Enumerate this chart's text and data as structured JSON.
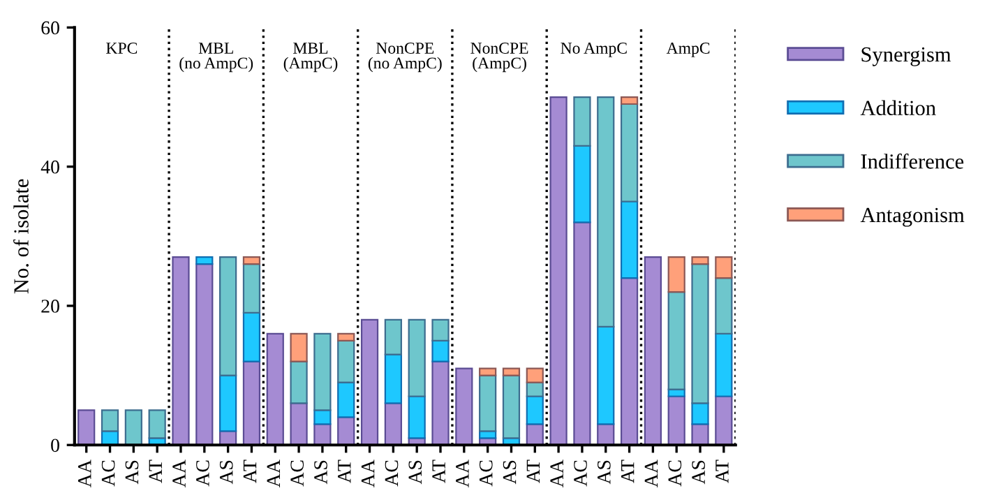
{
  "chart_data": {
    "type": "bar",
    "stacked": true,
    "ylabel": "No. of isolate",
    "categories": [
      "AA",
      "AC",
      "AS",
      "AT",
      "AA",
      "AC",
      "AS",
      "AT",
      "AA",
      "AC",
      "AS",
      "AT",
      "AA",
      "AC",
      "AS",
      "AT",
      "AA",
      "AC",
      "AS",
      "AT",
      "AA",
      "AC",
      "AS",
      "AT",
      "AA",
      "AC",
      "AS",
      "AT"
    ],
    "series": [
      {
        "name": "Synergism",
        "color": "#a58bd3",
        "values": [
          5,
          0,
          0,
          0,
          27,
          26,
          2,
          12,
          16,
          6,
          3,
          4,
          18,
          6,
          1,
          12,
          11,
          1,
          0,
          3,
          50,
          32,
          3,
          24,
          27,
          7,
          3,
          7
        ]
      },
      {
        "name": "Addition",
        "color": "#1ec8ff",
        "values": [
          0,
          2,
          0,
          1,
          0,
          1,
          8,
          7,
          0,
          0,
          2,
          5,
          0,
          7,
          6,
          3,
          0,
          1,
          1,
          4,
          0,
          11,
          14,
          11,
          0,
          1,
          3,
          9
        ]
      },
      {
        "name": "Indifference",
        "color": "#6ec6cc",
        "values": [
          0,
          3,
          5,
          4,
          0,
          0,
          17,
          7,
          0,
          6,
          11,
          6,
          0,
          5,
          11,
          3,
          0,
          8,
          9,
          2,
          0,
          7,
          33,
          14,
          0,
          14,
          20,
          8
        ]
      },
      {
        "name": "Antagonism",
        "color": "#ffa07a",
        "values": [
          0,
          0,
          0,
          0,
          0,
          0,
          0,
          1,
          0,
          4,
          0,
          1,
          0,
          0,
          0,
          0,
          0,
          1,
          1,
          2,
          0,
          0,
          0,
          1,
          0,
          5,
          1,
          3
        ]
      }
    ],
    "ylim": [
      0,
      60
    ],
    "yticks": [
      0,
      20,
      40,
      60
    ],
    "grid": false,
    "legend": "right",
    "annotations": [
      "KPC",
      "MBL\n(no AmpC)",
      "MBL\n(AmpC)",
      "NonCPE\n(no AmpC)",
      "NonCPE\n(AmpC)",
      "No AmpC",
      "AmpC"
    ]
  }
}
